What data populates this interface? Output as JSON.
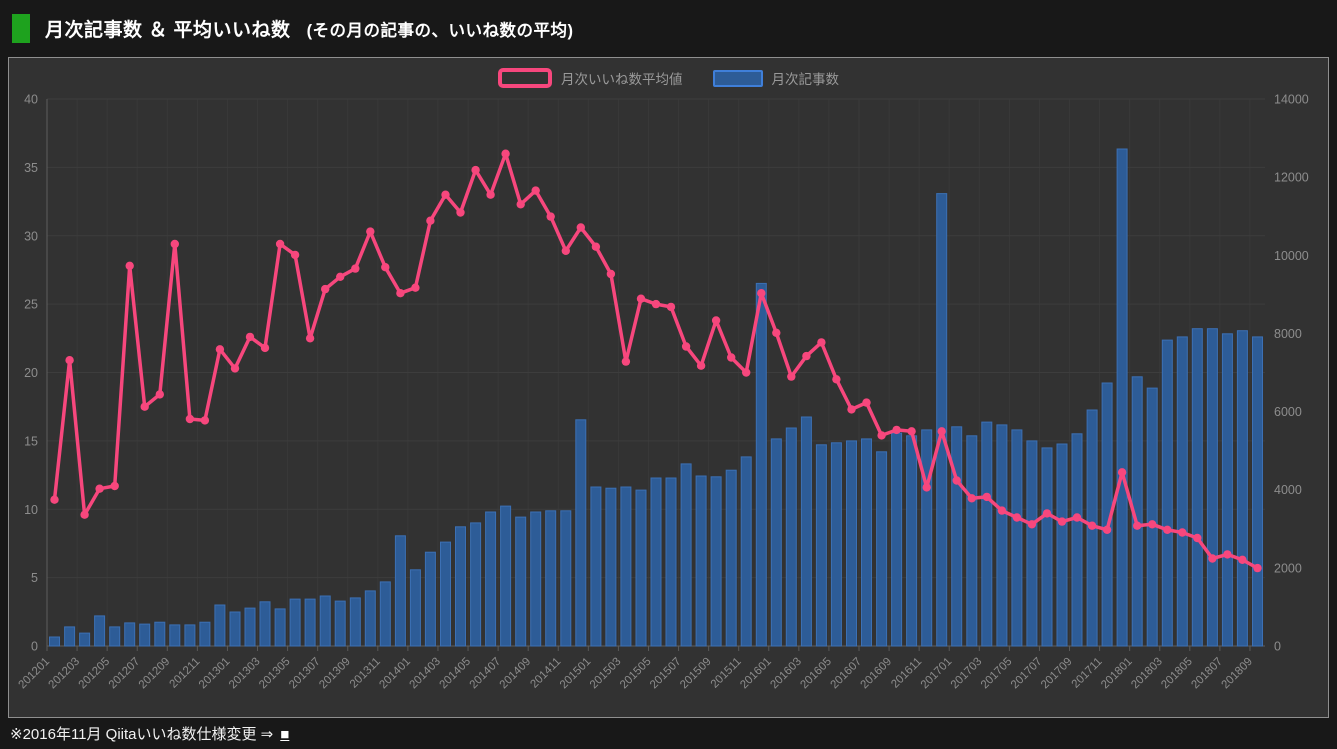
{
  "header": {
    "title_main": "月次記事数 ＆ 平均いいね数",
    "title_sub": "(その月の記事の、いいね数の平均)"
  },
  "legend": {
    "line_label": "月次いいね数平均値",
    "bar_label": "月次記事数"
  },
  "footnote": {
    "text": "※2016年11月 Qiitaいいね数仕様変更 ⇒",
    "link_label": "■"
  },
  "colors": {
    "panel_background": "#323232",
    "page_background": "#181818",
    "accent_green": "#1ea21e",
    "grid_line": "#3d3d3d",
    "axis_line": "#5f5f5f",
    "axis_label": "#8d8d8d",
    "line_series": "#f7477d",
    "bar_fill": "#2d5c97",
    "bar_border": "#3c70b4"
  },
  "chart_data": {
    "type": "bar",
    "title": "月次記事数 ＆ 平均いいね数 (その月の記事の、いいね数の平均)",
    "categories": [
      "201201",
      "201202",
      "201203",
      "201204",
      "201205",
      "201206",
      "201207",
      "201208",
      "201209",
      "201210",
      "201211",
      "201212",
      "201301",
      "201302",
      "201303",
      "201304",
      "201305",
      "201306",
      "201307",
      "201308",
      "201309",
      "201310",
      "201311",
      "201312",
      "201401",
      "201402",
      "201403",
      "201404",
      "201405",
      "201406",
      "201407",
      "201408",
      "201409",
      "201410",
      "201411",
      "201412",
      "201501",
      "201502",
      "201503",
      "201504",
      "201505",
      "201506",
      "201507",
      "201508",
      "201509",
      "201510",
      "201511",
      "201512",
      "201601",
      "201602",
      "201603",
      "201604",
      "201605",
      "201606",
      "201607",
      "201608",
      "201609",
      "201610",
      "201611",
      "201612",
      "201701",
      "201702",
      "201703",
      "201704",
      "201705",
      "201706",
      "201707",
      "201708",
      "201709",
      "201710",
      "201711",
      "201712",
      "201801",
      "201802",
      "201803",
      "201804",
      "201805",
      "201806",
      "201807",
      "201808",
      "201809"
    ],
    "series": [
      {
        "name": "月次いいね数平均値",
        "type": "line",
        "axis": "left",
        "color": "#f7477d",
        "values": [
          10.7,
          20.9,
          9.6,
          11.5,
          11.7,
          27.8,
          17.5,
          18.4,
          29.4,
          16.6,
          16.5,
          21.7,
          20.3,
          22.6,
          21.8,
          29.4,
          28.6,
          22.5,
          26.1,
          27.0,
          27.6,
          30.3,
          27.7,
          25.8,
          26.2,
          31.1,
          33.0,
          31.7,
          34.8,
          33.0,
          36.0,
          32.3,
          33.3,
          31.4,
          28.9,
          30.6,
          29.2,
          27.2,
          20.8,
          25.4,
          25.0,
          24.8,
          21.9,
          20.5,
          23.8,
          21.1,
          20.0,
          25.8,
          22.9,
          19.7,
          21.2,
          22.2,
          19.5,
          17.3,
          17.8,
          15.4,
          15.8,
          15.7,
          11.6,
          15.7,
          12.1,
          10.8,
          10.9,
          9.9,
          9.4,
          8.9,
          9.7,
          9.1,
          9.4,
          8.8,
          8.5,
          12.7,
          8.8,
          8.9,
          8.5,
          8.3,
          7.9,
          6.4,
          6.7,
          6.3,
          5.7
        ]
      },
      {
        "name": "月次記事数",
        "type": "bar",
        "axis": "right",
        "color": "#2d5c97",
        "border": "#3c70b4",
        "values": [
          230,
          490,
          330,
          770,
          490,
          590,
          560,
          610,
          540,
          540,
          610,
          1050,
          870,
          970,
          1130,
          950,
          1200,
          1200,
          1280,
          1150,
          1230,
          1410,
          1640,
          2820,
          1950,
          2400,
          2660,
          3050,
          3150,
          3430,
          3580,
          3300,
          3430,
          3460,
          3460,
          5790,
          4070,
          4040,
          4070,
          3990,
          4300,
          4300,
          4660,
          4350,
          4330,
          4500,
          4840,
          9280,
          5300,
          5580,
          5860,
          5150,
          5200,
          5250,
          5300,
          4970,
          5450,
          5380,
          5530,
          11580,
          5610,
          5380,
          5730,
          5660,
          5530,
          5250,
          5070,
          5170,
          5430,
          6040,
          6730,
          12720,
          6890,
          6600,
          7830,
          7910,
          8120,
          8120,
          7990,
          8070,
          7910
        ]
      }
    ],
    "left_axis": {
      "min": 0,
      "max": 40,
      "step": 5,
      "ticks": [
        0,
        5,
        10,
        15,
        20,
        25,
        30,
        35,
        40
      ]
    },
    "right_axis": {
      "min": 0,
      "max": 14000,
      "step": 2000,
      "ticks": [
        0,
        2000,
        4000,
        6000,
        8000,
        10000,
        12000,
        14000
      ]
    },
    "x_tick_every": 2,
    "x_label_rotation": -45,
    "grid": true,
    "legend_position": "top-center"
  }
}
